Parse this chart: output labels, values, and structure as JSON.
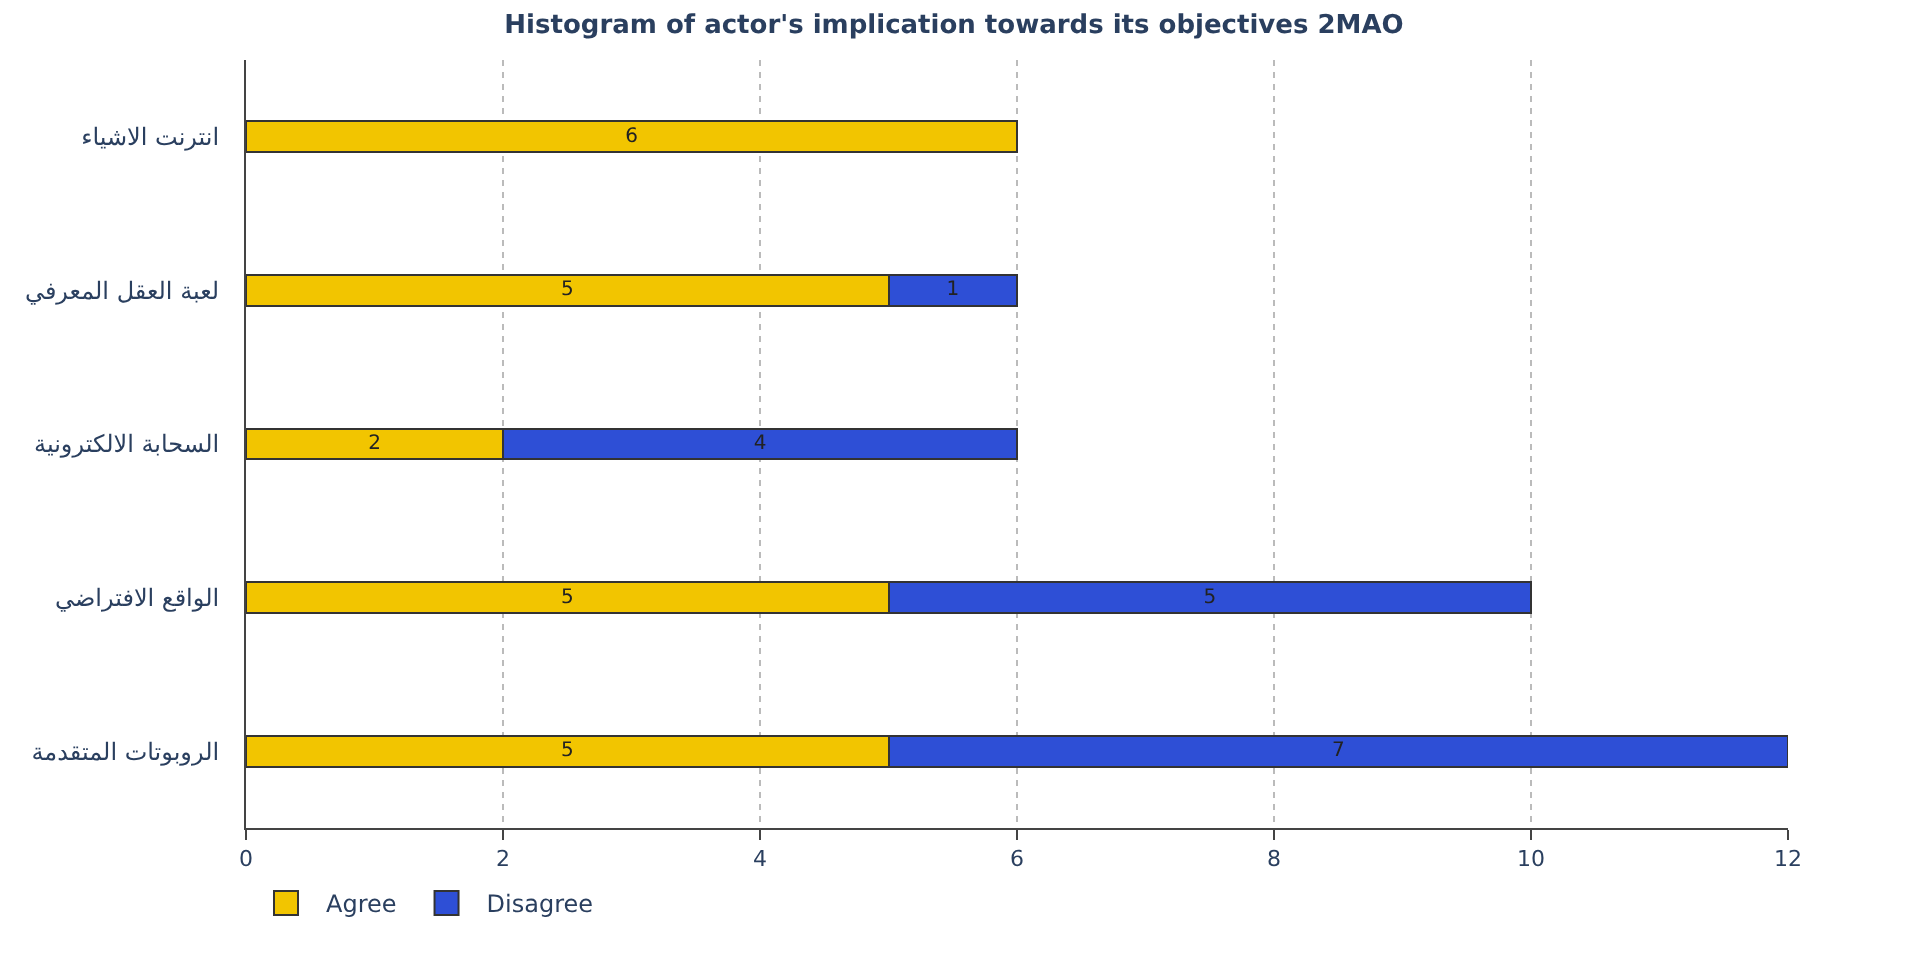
{
  "chart_data": {
    "type": "bar",
    "orientation": "horizontal",
    "stacked": true,
    "title": "Histogram of actor's implication towards its objectives 2MAO",
    "categories": [
      "انترنت الاشياء",
      "لعبة العقل المعرفي",
      "السحابة الالكترونية",
      "الواقع الافتراضي",
      "الروبوتات المتقدمة"
    ],
    "series": [
      {
        "name": "Agree",
        "color": "#f2c500",
        "values": [
          6,
          5,
          2,
          5,
          5
        ]
      },
      {
        "name": "Disagree",
        "color": "#2e4fd6",
        "values": [
          null,
          1,
          4,
          5,
          7
        ]
      }
    ],
    "xlim": [
      0,
      12
    ],
    "xticks": [
      0,
      2,
      4,
      6,
      8,
      10,
      12
    ],
    "grid": "x",
    "legend": "bottom left",
    "data_labels": true
  }
}
